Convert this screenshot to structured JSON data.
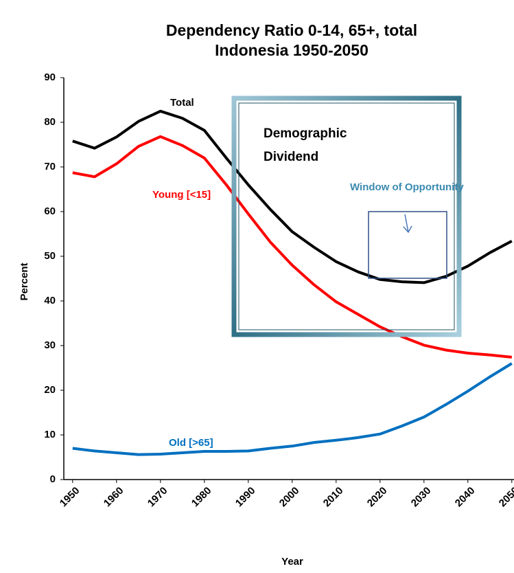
{
  "chart_data": {
    "type": "line",
    "title": [
      "Dependency Ratio 0-14, 65+, total",
      "Indonesia 1950-2050"
    ],
    "x_label": "Year",
    "y_label": "Percent",
    "x": [
      1950,
      1955,
      1960,
      1965,
      1970,
      1975,
      1980,
      1985,
      1990,
      1995,
      2000,
      2005,
      2010,
      2015,
      2020,
      2025,
      2030,
      2035,
      2040,
      2045,
      2050
    ],
    "xlim": [
      1948,
      2050.5
    ],
    "xticks": [
      1950,
      1960,
      1970,
      1980,
      1990,
      2000,
      2010,
      2020,
      2030,
      2040,
      2050
    ],
    "ylim": [
      0,
      90
    ],
    "yticks": [
      0,
      10,
      20,
      30,
      40,
      50,
      60,
      70,
      80,
      90
    ],
    "series": [
      {
        "name": "Total",
        "color": "#000000",
        "values": [
          75.8,
          74.2,
          76.7,
          80.2,
          82.5,
          80.9,
          78.2,
          72,
          66,
          60.5,
          55.5,
          52,
          48.8,
          46.5,
          44.8,
          44.3,
          44.1,
          45.5,
          47.8,
          50.8,
          53.4
        ]
      },
      {
        "name": "Young [<15]",
        "color": "#ff0000",
        "values": [
          68.7,
          67.8,
          70.7,
          74.6,
          76.8,
          74.8,
          72,
          66,
          59.5,
          53.2,
          48,
          43.6,
          39.8,
          37,
          34.2,
          32,
          30.1,
          29,
          28.3,
          27.9,
          27.4
        ]
      },
      {
        "name": "Old [>65]",
        "color": "#0070c0",
        "values": [
          7,
          6.4,
          6,
          5.6,
          5.7,
          6,
          6.3,
          6.3,
          6.4,
          7,
          7.5,
          8.3,
          8.8,
          9.4,
          10.2,
          12,
          14,
          16.8,
          19.8,
          23,
          26
        ]
      }
    ],
    "annotations": {
      "dividend": [
        "Demographic",
        "Dividend"
      ],
      "window": "Window of Opportunity"
    }
  }
}
